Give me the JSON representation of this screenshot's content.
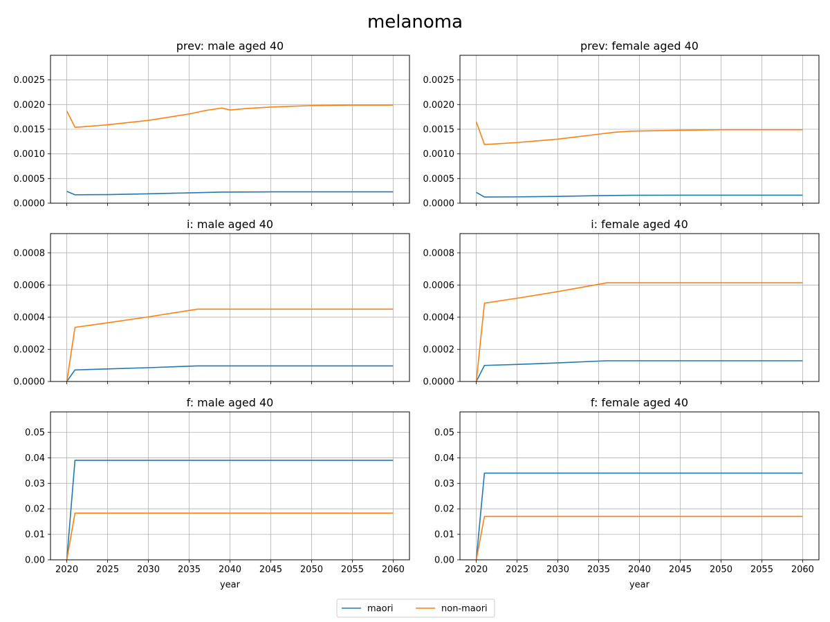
{
  "figure": {
    "title": "melanoma"
  },
  "colors": {
    "maori": "#1f77b4",
    "non-maori": "#ff7f0e",
    "grid": "#b0b0b0",
    "axes": "#000000"
  },
  "legend": {
    "placement": "bottom-center",
    "entries": [
      {
        "name": "maori",
        "color": "#1f77b4"
      },
      {
        "name": "non-maori",
        "color": "#ff7f0e"
      }
    ]
  },
  "chart_data": [
    {
      "type": "line",
      "title": "prev: male aged 40",
      "xlabel": "",
      "ylabel": "",
      "xlim": [
        2018,
        2062
      ],
      "ylim": [
        0,
        0.003
      ],
      "xticks": [
        2020,
        2025,
        2030,
        2035,
        2040,
        2045,
        2050,
        2055,
        2060
      ],
      "xtick_labels_shown": false,
      "yticks": [
        0,
        0.0005,
        0.001,
        0.0015,
        0.002,
        0.0025
      ],
      "ytick_labels": [
        "0.0000",
        "0.0005",
        "0.0010",
        "0.0015",
        "0.0020",
        "0.0025"
      ],
      "grid": true,
      "series": [
        {
          "name": "maori",
          "color": "#1f77b4",
          "x": [
            2020,
            2021,
            2025,
            2030,
            2035,
            2039,
            2045,
            2050,
            2060
          ],
          "y": [
            0.00024,
            0.00017,
            0.000175,
            0.00019,
            0.00021,
            0.000225,
            0.00023,
            0.00023,
            0.00023
          ]
        },
        {
          "name": "non-maori",
          "color": "#ff7f0e",
          "x": [
            2020,
            2021,
            2022,
            2025,
            2030,
            2035,
            2037,
            2039,
            2040,
            2042,
            2045,
            2050,
            2055,
            2060
          ],
          "y": [
            0.00187,
            0.00154,
            0.00155,
            0.00159,
            0.00168,
            0.00181,
            0.00188,
            0.00193,
            0.00189,
            0.00192,
            0.00195,
            0.00198,
            0.00199,
            0.00199
          ]
        }
      ]
    },
    {
      "type": "line",
      "title": "prev: female aged 40",
      "xlabel": "",
      "ylabel": "",
      "xlim": [
        2018,
        2062
      ],
      "ylim": [
        0,
        0.003
      ],
      "xticks": [
        2020,
        2025,
        2030,
        2035,
        2040,
        2045,
        2050,
        2055,
        2060
      ],
      "xtick_labels_shown": false,
      "yticks": [
        0,
        0.0005,
        0.001,
        0.0015,
        0.002,
        0.0025
      ],
      "ytick_labels": [
        "0.0000",
        "0.0005",
        "0.0010",
        "0.0015",
        "0.0020",
        "0.0025"
      ],
      "grid": true,
      "series": [
        {
          "name": "maori",
          "color": "#1f77b4",
          "x": [
            2020,
            2021,
            2025,
            2030,
            2035,
            2039,
            2045,
            2060
          ],
          "y": [
            0.00022,
            0.000125,
            0.000128,
            0.000138,
            0.000153,
            0.00016,
            0.000162,
            0.000162
          ]
        },
        {
          "name": "non-maori",
          "color": "#ff7f0e",
          "x": [
            2020,
            2021,
            2022,
            2025,
            2030,
            2035,
            2037,
            2039,
            2045,
            2050,
            2060
          ],
          "y": [
            0.00165,
            0.00119,
            0.0012,
            0.00123,
            0.0013,
            0.0014,
            0.00144,
            0.00146,
            0.00148,
            0.00149,
            0.00149
          ]
        }
      ]
    },
    {
      "type": "line",
      "title": "i: male aged 40",
      "xlabel": "",
      "ylabel": "",
      "xlim": [
        2018,
        2062
      ],
      "ylim": [
        0,
        0.00092
      ],
      "xticks": [
        2020,
        2025,
        2030,
        2035,
        2040,
        2045,
        2050,
        2055,
        2060
      ],
      "xtick_labels_shown": false,
      "yticks": [
        0,
        0.0002,
        0.0004,
        0.0006,
        0.0008
      ],
      "ytick_labels": [
        "0.0000",
        "0.0002",
        "0.0004",
        "0.0006",
        "0.0008"
      ],
      "grid": true,
      "series": [
        {
          "name": "maori",
          "color": "#1f77b4",
          "x": [
            2020,
            2021,
            2025,
            2030,
            2036,
            2045,
            2060
          ],
          "y": [
            0,
            7.2e-05,
            7.8e-05,
            8.6e-05,
            9.7e-05,
            9.7e-05,
            9.7e-05
          ]
        },
        {
          "name": "non-maori",
          "color": "#ff7f0e",
          "x": [
            2020,
            2021,
            2025,
            2030,
            2036,
            2045,
            2060
          ],
          "y": [
            0,
            0.000337,
            0.000365,
            0.000402,
            0.00045,
            0.00045,
            0.00045
          ]
        }
      ]
    },
    {
      "type": "line",
      "title": "i: female aged 40",
      "xlabel": "",
      "ylabel": "",
      "xlim": [
        2018,
        2062
      ],
      "ylim": [
        0,
        0.00092
      ],
      "xticks": [
        2020,
        2025,
        2030,
        2035,
        2040,
        2045,
        2050,
        2055,
        2060
      ],
      "xtick_labels_shown": false,
      "yticks": [
        0,
        0.0002,
        0.0004,
        0.0006,
        0.0008
      ],
      "ytick_labels": [
        "0.0000",
        "0.0002",
        "0.0004",
        "0.0006",
        "0.0008"
      ],
      "grid": true,
      "series": [
        {
          "name": "maori",
          "color": "#1f77b4",
          "x": [
            2020,
            2021,
            2025,
            2030,
            2036,
            2045,
            2060
          ],
          "y": [
            0,
            0.0001,
            0.000106,
            0.000116,
            0.000129,
            0.000129,
            0.000129
          ]
        },
        {
          "name": "non-maori",
          "color": "#ff7f0e",
          "x": [
            2020,
            2021,
            2025,
            2030,
            2036,
            2045,
            2060
          ],
          "y": [
            0,
            0.000487,
            0.000518,
            0.000559,
            0.000614,
            0.000614,
            0.000614
          ]
        }
      ]
    },
    {
      "type": "line",
      "title": "f: male aged 40",
      "xlabel": "year",
      "ylabel": "",
      "xlim": [
        2018,
        2062
      ],
      "ylim": [
        0,
        0.058
      ],
      "xticks": [
        2020,
        2025,
        2030,
        2035,
        2040,
        2045,
        2050,
        2055,
        2060
      ],
      "xtick_labels": [
        "2020",
        "2025",
        "2030",
        "2035",
        "2040",
        "2045",
        "2050",
        "2055",
        "2060"
      ],
      "xtick_labels_shown": true,
      "yticks": [
        0,
        0.01,
        0.02,
        0.03,
        0.04,
        0.05
      ],
      "ytick_labels": [
        "0.00",
        "0.01",
        "0.02",
        "0.03",
        "0.04",
        "0.05"
      ],
      "grid": true,
      "series": [
        {
          "name": "maori",
          "color": "#1f77b4",
          "x": [
            2020,
            2021,
            2060
          ],
          "y": [
            0,
            0.039,
            0.039
          ]
        },
        {
          "name": "non-maori",
          "color": "#ff7f0e",
          "x": [
            2020,
            2021,
            2060
          ],
          "y": [
            0,
            0.0183,
            0.0183
          ]
        }
      ]
    },
    {
      "type": "line",
      "title": "f: female aged 40",
      "xlabel": "year",
      "ylabel": "",
      "xlim": [
        2018,
        2062
      ],
      "ylim": [
        0,
        0.058
      ],
      "xticks": [
        2020,
        2025,
        2030,
        2035,
        2040,
        2045,
        2050,
        2055,
        2060
      ],
      "xtick_labels": [
        "2020",
        "2025",
        "2030",
        "2035",
        "2040",
        "2045",
        "2050",
        "2055",
        "2060"
      ],
      "xtick_labels_shown": true,
      "yticks": [
        0,
        0.01,
        0.02,
        0.03,
        0.04,
        0.05
      ],
      "ytick_labels": [
        "0.00",
        "0.01",
        "0.02",
        "0.03",
        "0.04",
        "0.05"
      ],
      "grid": true,
      "series": [
        {
          "name": "maori",
          "color": "#1f77b4",
          "x": [
            2020,
            2021,
            2060
          ],
          "y": [
            0,
            0.034,
            0.034
          ]
        },
        {
          "name": "non-maori",
          "color": "#ff7f0e",
          "x": [
            2020,
            2021,
            2060
          ],
          "y": [
            0,
            0.017,
            0.017
          ]
        }
      ]
    }
  ]
}
